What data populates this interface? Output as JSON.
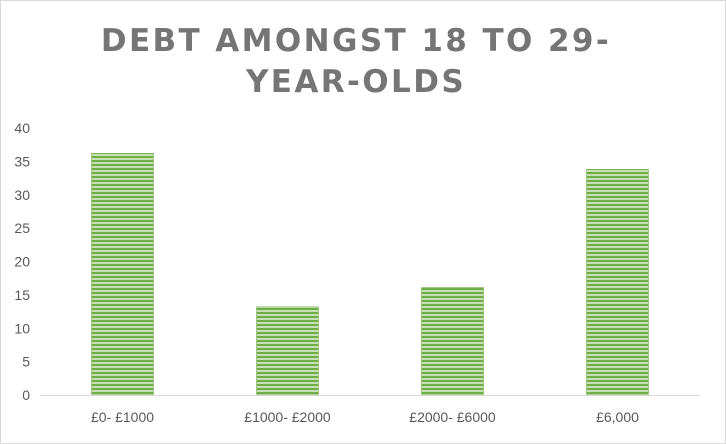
{
  "chart_data": {
    "type": "bar",
    "title": "DEBT AMONGST 18 TO 29-YEAR-OLDS",
    "categories": [
      "£0- £1000",
      "£1000- £2000",
      "£2000- £6000",
      "£6,000"
    ],
    "values": [
      36.2,
      13.2,
      16.1,
      33.8
    ],
    "xlabel": "",
    "ylabel": "",
    "ylim": [
      0,
      40
    ],
    "yticks": [
      0,
      5,
      10,
      15,
      20,
      25,
      30,
      35,
      40
    ],
    "grid": false,
    "legend": "none",
    "bar_pattern": "horizontal-stripes"
  },
  "colors": {
    "bar_stripe_dark": "#70ad47",
    "bar_stripe_light": "#c5e0b4",
    "axis": "#d9d9d9",
    "title": "#757575",
    "tick_text": "#595959"
  }
}
